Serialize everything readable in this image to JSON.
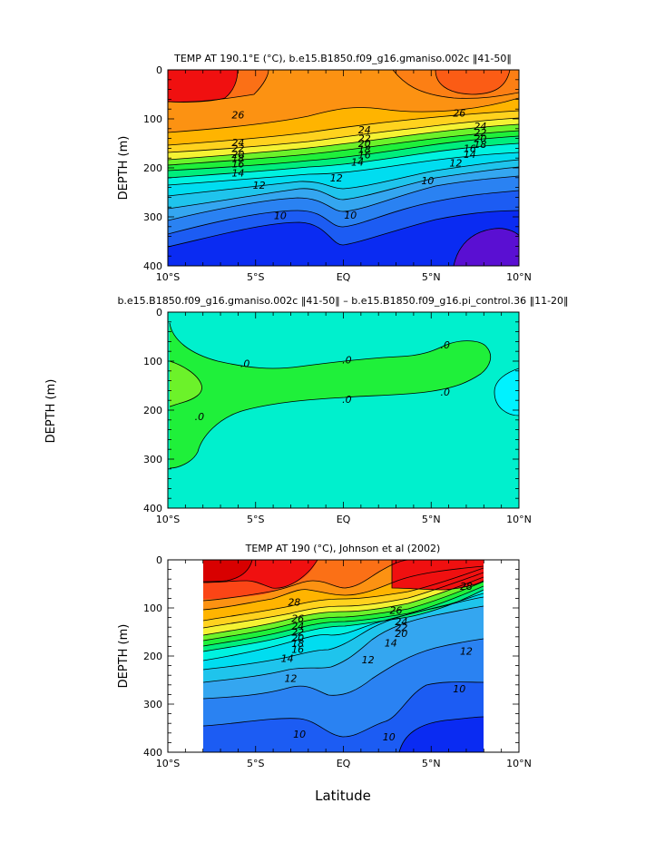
{
  "figure": {
    "xlabel": "Latitude",
    "ylabel": "DEPTH (m)"
  },
  "chart_data": [
    {
      "type": "heatmap",
      "title": "TEMP AT 190.1°E (°C), b.e15.B1850.f09_g16.gmaniso.002c ‖41-50‖",
      "xlabel": "",
      "ylabel": "DEPTH (m)",
      "x_ticks": [
        "10°S",
        "5°S",
        "EQ",
        "5°N",
        "10°N"
      ],
      "y_ticks": [
        "0",
        "100",
        "200",
        "300",
        "400"
      ],
      "xlim": [
        -10,
        10
      ],
      "ylim": [
        400,
        0
      ],
      "contour_labels": [
        {
          "text": "26",
          "lat": -6,
          "depth": 92
        },
        {
          "text": "24",
          "lat": -6,
          "depth": 148
        },
        {
          "text": "22",
          "lat": -6,
          "depth": 160
        },
        {
          "text": "20",
          "lat": -6,
          "depth": 172
        },
        {
          "text": "18",
          "lat": -6,
          "depth": 181
        },
        {
          "text": "16",
          "lat": -6,
          "depth": 192
        },
        {
          "text": "14",
          "lat": -6,
          "depth": 210
        },
        {
          "text": "12",
          "lat": -4.8,
          "depth": 235
        },
        {
          "text": "10",
          "lat": -3.6,
          "depth": 297
        },
        {
          "text": "24",
          "lat": 1.2,
          "depth": 122
        },
        {
          "text": "22",
          "lat": 1.2,
          "depth": 140
        },
        {
          "text": "20",
          "lat": 1.2,
          "depth": 150
        },
        {
          "text": "18",
          "lat": 1.2,
          "depth": 162
        },
        {
          "text": "16",
          "lat": 1.2,
          "depth": 173
        },
        {
          "text": "14",
          "lat": 0.8,
          "depth": 188
        },
        {
          "text": "12",
          "lat": -0.4,
          "depth": 220
        },
        {
          "text": "10",
          "lat": 0.4,
          "depth": 296
        },
        {
          "text": "26",
          "lat": 6.6,
          "depth": 88
        },
        {
          "text": "24",
          "lat": 7.8,
          "depth": 115
        },
        {
          "text": "22",
          "lat": 7.8,
          "depth": 128
        },
        {
          "text": "20",
          "lat": 7.8,
          "depth": 140
        },
        {
          "text": "18",
          "lat": 7.8,
          "depth": 152
        },
        {
          "text": "16",
          "lat": 7.2,
          "depth": 160
        },
        {
          "text": "14",
          "lat": 7.2,
          "depth": 172
        },
        {
          "text": "12",
          "lat": 6.4,
          "depth": 190
        },
        {
          "text": "10",
          "lat": 4.8,
          "depth": 226
        }
      ]
    },
    {
      "type": "heatmap",
      "title": "b.e15.B1850.f09_g16.gmaniso.002c ‖41-50‖ – b.e15.B1850.f09_g16.pi_control.36 ‖11-20‖",
      "xlabel": "",
      "ylabel": "DEPTH (m)",
      "x_ticks": [
        "10°S",
        "5°S",
        "EQ",
        "5°N",
        "10°N"
      ],
      "y_ticks": [
        "0",
        "100",
        "200",
        "300",
        "400"
      ],
      "xlim": [
        -10,
        10
      ],
      "ylim": [
        400,
        0
      ],
      "contour_labels": [
        {
          "text": ".0",
          "lat": -5.6,
          "depth": 105
        },
        {
          "text": ".0",
          "lat": -8.2,
          "depth": 213
        },
        {
          "text": ".0",
          "lat": 0.2,
          "depth": 97
        },
        {
          "text": ".0",
          "lat": 0.2,
          "depth": 178
        },
        {
          "text": ".0",
          "lat": 5.8,
          "depth": 67
        },
        {
          "text": ".0",
          "lat": 5.8,
          "depth": 163
        }
      ]
    },
    {
      "type": "heatmap",
      "title": "TEMP AT 190 (°C), Johnson et al (2002)",
      "xlabel": "Latitude",
      "ylabel": "DEPTH (m)",
      "x_ticks": [
        "10°S",
        "5°S",
        "EQ",
        "5°N",
        "10°N"
      ],
      "y_ticks": [
        "0",
        "100",
        "200",
        "300",
        "400"
      ],
      "xlim": [
        -10,
        10
      ],
      "ylim": [
        400,
        0
      ],
      "data_lat_range": [
        -8,
        8
      ],
      "contour_labels": [
        {
          "text": "28",
          "lat": -2.8,
          "depth": 88
        },
        {
          "text": "26",
          "lat": -2.6,
          "depth": 122
        },
        {
          "text": "24",
          "lat": -2.6,
          "depth": 138
        },
        {
          "text": "22",
          "lat": -2.6,
          "depth": 150
        },
        {
          "text": "20",
          "lat": -2.6,
          "depth": 162
        },
        {
          "text": "18",
          "lat": -2.6,
          "depth": 174
        },
        {
          "text": "16",
          "lat": -2.6,
          "depth": 186
        },
        {
          "text": "14",
          "lat": -3.2,
          "depth": 205
        },
        {
          "text": "12",
          "lat": -3.0,
          "depth": 246
        },
        {
          "text": "12",
          "lat": 1.4,
          "depth": 208
        },
        {
          "text": "26",
          "lat": 3.0,
          "depth": 105
        },
        {
          "text": "24",
          "lat": 3.3,
          "depth": 128
        },
        {
          "text": "22",
          "lat": 3.3,
          "depth": 141
        },
        {
          "text": "20",
          "lat": 3.3,
          "depth": 153
        },
        {
          "text": "14",
          "lat": 2.7,
          "depth": 173
        },
        {
          "text": "28",
          "lat": 7.0,
          "depth": 55
        },
        {
          "text": "12",
          "lat": 7.0,
          "depth": 190
        },
        {
          "text": "10",
          "lat": 6.6,
          "depth": 268
        },
        {
          "text": "10",
          "lat": -2.5,
          "depth": 362
        },
        {
          "text": "10",
          "lat": 2.6,
          "depth": 368
        }
      ]
    }
  ],
  "colors": {
    "purple": "#5a0fd2",
    "blue1": "#0a2bf2",
    "blue2": "#1c5cf3",
    "blue3": "#2a82f2",
    "blue4": "#34a6f0",
    "cyan1": "#1fc4ec",
    "cyan2": "#00ddf0",
    "aqua": "#00f2e0",
    "teal": "#00f0cd",
    "green1": "#00ee7c",
    "green2": "#1ff03a",
    "lime": "#6cf22a",
    "yellow": "#f4f233",
    "yellow2": "#ffd21e",
    "orange1": "#ffb400",
    "orange2": "#fc9212",
    "orange3": "#fb7016",
    "redorange": "#fb4516",
    "red": "#f01010",
    "darkred": "#d80000"
  }
}
